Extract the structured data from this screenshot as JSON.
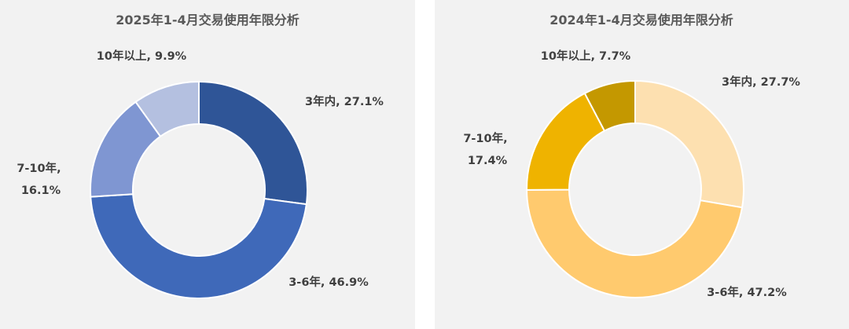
{
  "chart_data": [
    {
      "type": "pie",
      "title": "2025年1-4月交易使用年限分析",
      "values": [
        27.1,
        46.9,
        16.1,
        9.9
      ],
      "value_labels": [
        "3年内, 27.1%",
        "3-6年, 46.9%",
        "7-10年, 16.1%",
        "10年以上, 9.9%"
      ],
      "colors": [
        "#2f5597",
        "#3f69b9",
        "#7f96d2",
        "#b4c0e0"
      ]
    },
    {
      "type": "pie",
      "title": "2024年1-4月交易使用年限分析",
      "values": [
        27.7,
        47.2,
        17.4,
        7.7
      ],
      "value_labels": [
        "3年内, 27.7%",
        "3-6年, 47.2%",
        "7-10年, 17.4%",
        "10年以上, 7.7%"
      ],
      "colors": [
        "#fde0b0",
        "#ffca6e",
        "#efb300",
        "#c49800"
      ]
    }
  ]
}
